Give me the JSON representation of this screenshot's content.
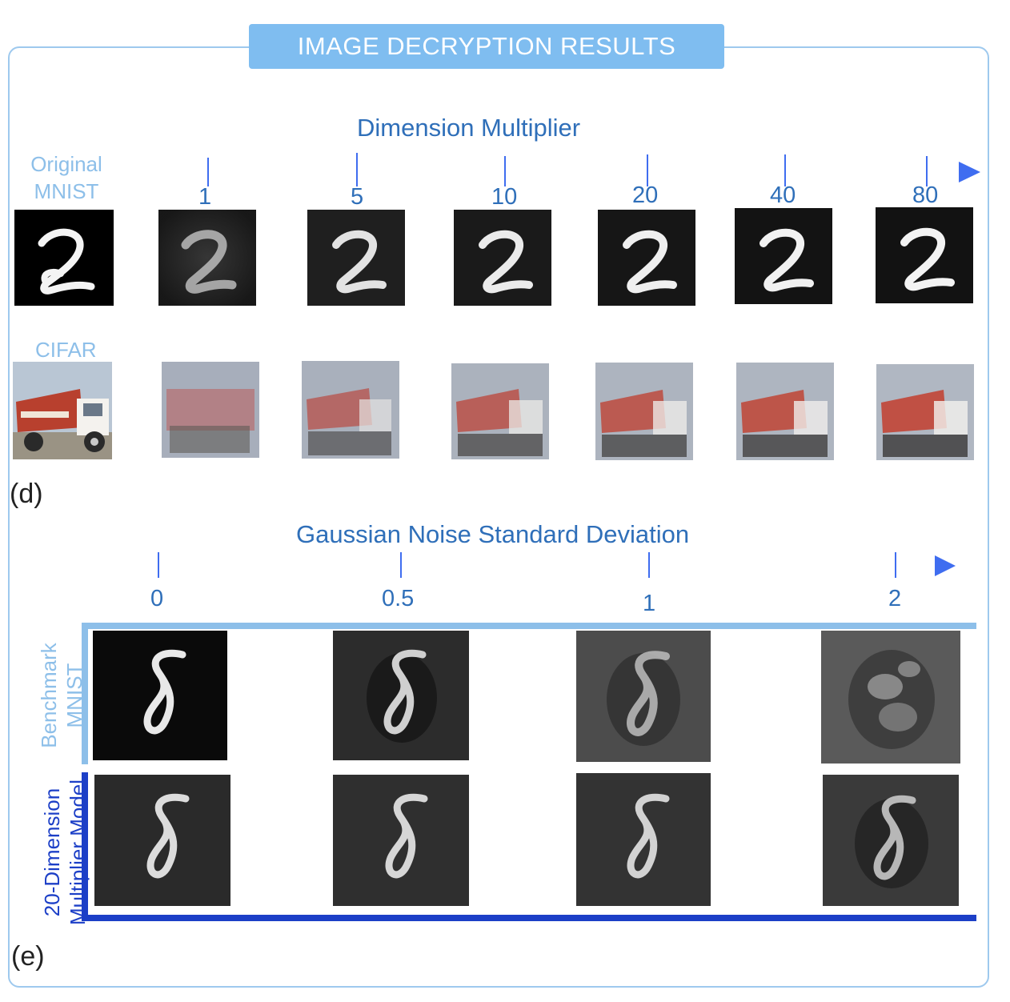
{
  "header": {
    "title": "IMAGE DECRYPTION RESULTS"
  },
  "panel_d": {
    "letter": "(d)",
    "axis_title": "Dimension Multiplier",
    "ticks": [
      "1",
      "5",
      "10",
      "20",
      "40",
      "80"
    ],
    "row_labels": {
      "mnist": [
        "Original",
        "MNIST"
      ],
      "cifar": "CIFAR"
    }
  },
  "panel_e": {
    "letter": "(e)",
    "axis_title": "Gaussian Noise Standard Deviation",
    "ticks": [
      "0",
      "0.5",
      "1",
      "2"
    ],
    "benchmark_label": [
      "Benchmark",
      "MNIST"
    ],
    "model_label": [
      "20-Dimension",
      "Multiplier Model"
    ]
  },
  "colors": {
    "accent": "#4a7ff0",
    "light_blue": "#8dbfe9",
    "dark_blue": "#1c3fc7",
    "banner": "#7fbdf0"
  }
}
